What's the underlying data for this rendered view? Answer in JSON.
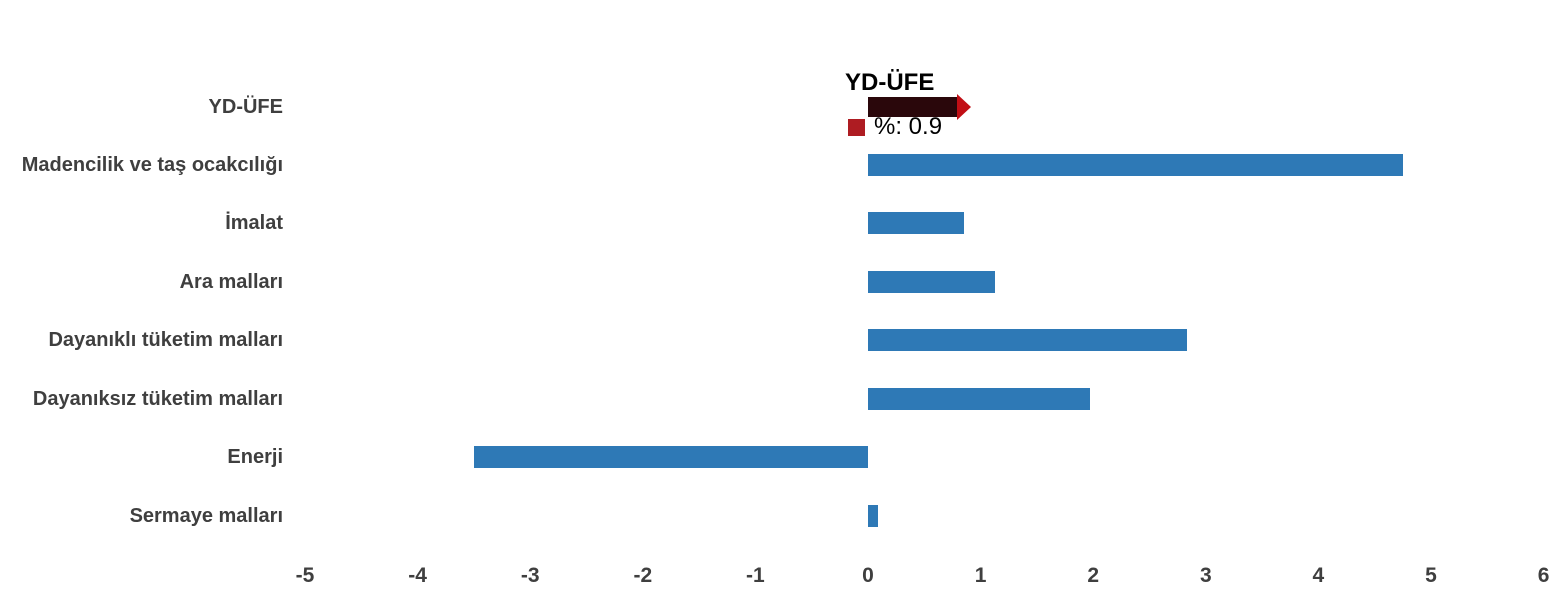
{
  "page": {
    "background_color": "#ffffff",
    "text_color": "#3F3F3F"
  },
  "chart_data": {
    "type": "bar",
    "orientation": "horizontal",
    "title": "",
    "xlabel": "",
    "ylabel": "",
    "grid": false,
    "xlim": [
      -5,
      6
    ],
    "x_ticks": [
      -5,
      -4,
      -3,
      -2,
      -1,
      0,
      1,
      2,
      3,
      4,
      5,
      6
    ],
    "categories": [
      "YD-ÜFE",
      "Madencilik ve taş ocakcılığı",
      "İmalat",
      "Ara malları",
      "Dayanıklı tüketim malları",
      "Dayanıksız tüketim malları",
      "Enerji",
      "Sermaye malları"
    ],
    "values": [
      0.9,
      4.75,
      0.85,
      1.13,
      2.83,
      1.97,
      -3.5,
      0.09
    ],
    "bar_color": "#2E79B6",
    "highlight_category": "YD-ÜFE",
    "highlight_bar_color": "#2A070B",
    "highlight_arrow_color": "#C10E15",
    "label_color": "#3F3F3F",
    "tick_label_color": "#3F3F3F"
  },
  "tooltip": {
    "title": "YD-ÜFE",
    "marker_color": "#AE1C22",
    "value_label": "%: 0.9"
  }
}
